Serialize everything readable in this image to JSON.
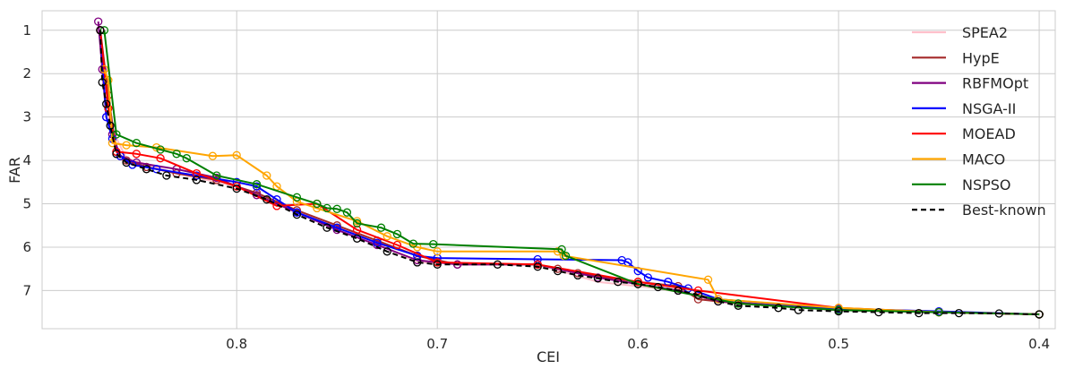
{
  "chart_data": {
    "type": "line",
    "xlabel": "CEI",
    "ylabel": "FAR",
    "x_reversed": true,
    "y_reversed": true,
    "xlim": [
      0.897,
      0.392
    ],
    "ylim": [
      0.55,
      7.88
    ],
    "x_ticks": [
      0.8,
      0.7,
      0.6,
      0.5,
      0.4
    ],
    "x_tick_labels": [
      "0.8",
      "0.7",
      "0.6",
      "0.5",
      "0.4"
    ],
    "y_ticks": [
      1,
      2,
      3,
      4,
      5,
      6,
      7
    ],
    "y_tick_labels": [
      "1",
      "2",
      "3",
      "4",
      "5",
      "6",
      "7"
    ],
    "grid": true,
    "legend_position": "top-right",
    "series": [
      {
        "name": "SPEA2",
        "color": "#ffc0cb",
        "dash": false,
        "markers": false,
        "x": [
          0.868,
          0.862,
          0.855,
          0.83,
          0.8,
          0.77,
          0.74,
          0.71,
          0.68,
          0.65,
          0.62,
          0.59,
          0.56,
          0.5,
          0.45,
          0.4
        ],
        "y": [
          1.0,
          3.3,
          3.95,
          4.3,
          4.6,
          5.2,
          5.7,
          6.35,
          6.4,
          6.4,
          6.8,
          6.95,
          7.2,
          7.45,
          7.5,
          7.55
        ]
      },
      {
        "name": "HypE",
        "color": "#a52a2a",
        "dash": false,
        "markers": true,
        "x": [
          0.868,
          0.864,
          0.86,
          0.855,
          0.845,
          0.83,
          0.81,
          0.79,
          0.77,
          0.75,
          0.73,
          0.71,
          0.69,
          0.65,
          0.64,
          0.63,
          0.6,
          0.58,
          0.57,
          0.55,
          0.5,
          0.45,
          0.4
        ],
        "y": [
          1.0,
          2.5,
          3.8,
          4.0,
          4.15,
          4.3,
          4.45,
          4.75,
          5.15,
          5.5,
          5.85,
          6.2,
          6.4,
          6.4,
          6.5,
          6.6,
          6.8,
          6.9,
          7.2,
          7.3,
          7.45,
          7.5,
          7.55
        ]
      },
      {
        "name": "RBFMOpt",
        "color": "#800080",
        "dash": false,
        "markers": true,
        "x": [
          0.869,
          0.867,
          0.865,
          0.862,
          0.858,
          0.85,
          0.83,
          0.81,
          0.79,
          0.77,
          0.75,
          0.73,
          0.71,
          0.69,
          0.65,
          0.62,
          0.6,
          0.58,
          0.56,
          0.5,
          0.45,
          0.4
        ],
        "y": [
          0.8,
          1.9,
          3.0,
          3.4,
          3.9,
          4.05,
          4.2,
          4.4,
          4.8,
          5.2,
          5.6,
          5.95,
          6.3,
          6.4,
          6.4,
          6.7,
          6.85,
          7.0,
          7.25,
          7.45,
          7.5,
          7.55
        ]
      },
      {
        "name": "NSGA-II",
        "color": "#0000ff",
        "dash": false,
        "markers": true,
        "x": [
          0.868,
          0.865,
          0.862,
          0.858,
          0.852,
          0.84,
          0.82,
          0.8,
          0.79,
          0.78,
          0.77,
          0.75,
          0.73,
          0.71,
          0.7,
          0.65,
          0.608,
          0.605,
          0.6,
          0.595,
          0.585,
          0.575,
          0.56,
          0.5,
          0.45,
          0.4
        ],
        "y": [
          1.0,
          3.0,
          3.5,
          3.9,
          4.1,
          4.2,
          4.35,
          4.5,
          4.6,
          4.9,
          5.2,
          5.55,
          5.9,
          6.2,
          6.25,
          6.28,
          6.3,
          6.35,
          6.55,
          6.7,
          6.8,
          6.95,
          7.2,
          7.42,
          7.48,
          7.55
        ]
      },
      {
        "name": "MOEAD",
        "color": "#ff0000",
        "dash": false,
        "markers": true,
        "x": [
          0.868,
          0.864,
          0.86,
          0.85,
          0.838,
          0.82,
          0.8,
          0.78,
          0.76,
          0.74,
          0.72,
          0.7,
          0.65,
          0.6,
          0.57,
          0.5,
          0.45,
          0.4
        ],
        "y": [
          1.0,
          2.8,
          3.8,
          3.85,
          3.95,
          4.3,
          4.6,
          5.05,
          5.0,
          5.6,
          5.95,
          6.35,
          6.4,
          6.8,
          7.0,
          7.4,
          7.5,
          7.55
        ]
      },
      {
        "name": "MACO",
        "color": "#ffa500",
        "dash": false,
        "markers": true,
        "x": [
          0.866,
          0.864,
          0.862,
          0.855,
          0.84,
          0.812,
          0.8,
          0.785,
          0.78,
          0.77,
          0.76,
          0.74,
          0.725,
          0.71,
          0.7,
          0.64,
          0.637,
          0.565,
          0.56,
          0.5,
          0.45,
          0.4
        ],
        "y": [
          1.9,
          2.15,
          3.6,
          3.65,
          3.7,
          3.9,
          3.88,
          4.35,
          4.6,
          4.95,
          5.1,
          5.4,
          5.75,
          6.0,
          6.1,
          6.1,
          6.2,
          6.75,
          7.2,
          7.4,
          7.5,
          7.55
        ]
      },
      {
        "name": "NSPSO",
        "color": "#008000",
        "dash": false,
        "markers": true,
        "x": [
          0.866,
          0.86,
          0.85,
          0.838,
          0.83,
          0.825,
          0.81,
          0.79,
          0.77,
          0.76,
          0.755,
          0.75,
          0.745,
          0.74,
          0.728,
          0.72,
          0.712,
          0.702,
          0.638,
          0.636,
          0.6,
          0.55,
          0.5,
          0.45,
          0.4
        ],
        "y": [
          1.0,
          3.4,
          3.6,
          3.75,
          3.85,
          3.95,
          4.35,
          4.55,
          4.85,
          5.0,
          5.1,
          5.12,
          5.2,
          5.45,
          5.55,
          5.7,
          5.92,
          5.93,
          6.05,
          6.2,
          6.85,
          7.3,
          7.45,
          7.5,
          7.55
        ]
      },
      {
        "name": "Best-known",
        "color": "#000000",
        "dash": true,
        "markers": true,
        "x": [
          0.868,
          0.867,
          0.865,
          0.863,
          0.86,
          0.855,
          0.845,
          0.835,
          0.82,
          0.8,
          0.785,
          0.77,
          0.755,
          0.74,
          0.725,
          0.71,
          0.7,
          0.67,
          0.65,
          0.64,
          0.63,
          0.62,
          0.61,
          0.6,
          0.59,
          0.58,
          0.57,
          0.56,
          0.55,
          0.53,
          0.52,
          0.5,
          0.48,
          0.46,
          0.44,
          0.42,
          0.4
        ],
        "y": [
          1.0,
          2.2,
          2.7,
          3.2,
          3.85,
          4.05,
          4.2,
          4.35,
          4.45,
          4.65,
          4.9,
          5.25,
          5.55,
          5.8,
          6.1,
          6.35,
          6.4,
          6.4,
          6.45,
          6.55,
          6.65,
          6.72,
          6.8,
          6.85,
          6.92,
          7.0,
          7.1,
          7.25,
          7.35,
          7.4,
          7.45,
          7.48,
          7.5,
          7.52,
          7.52,
          7.53,
          7.55
        ]
      }
    ]
  }
}
